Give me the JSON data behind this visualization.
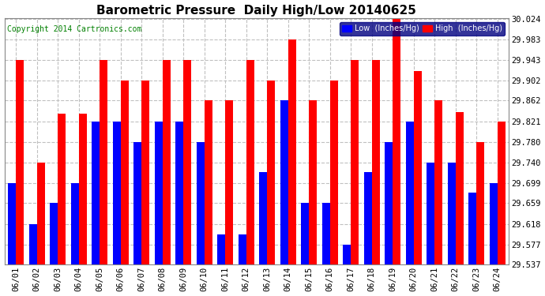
{
  "title": "Barometric Pressure  Daily High/Low 20140625",
  "copyright": "Copyright 2014 Cartronics.com",
  "legend_low": "Low  (Inches/Hg)",
  "legend_high": "High  (Inches/Hg)",
  "categories": [
    "06/01",
    "06/02",
    "06/03",
    "06/04",
    "06/05",
    "06/06",
    "06/07",
    "06/08",
    "06/09",
    "06/10",
    "06/11",
    "06/12",
    "06/13",
    "06/14",
    "06/15",
    "06/16",
    "06/17",
    "06/18",
    "06/19",
    "06/20",
    "06/21",
    "06/22",
    "06/23",
    "06/24"
  ],
  "high_values": [
    29.943,
    29.74,
    29.836,
    29.836,
    29.943,
    29.902,
    29.902,
    29.943,
    29.943,
    29.862,
    29.862,
    29.943,
    29.902,
    29.983,
    29.862,
    29.902,
    29.943,
    29.943,
    30.024,
    29.921,
    29.862,
    29.84,
    29.78,
    29.821
  ],
  "low_values": [
    29.699,
    29.618,
    29.659,
    29.699,
    29.821,
    29.821,
    29.78,
    29.821,
    29.821,
    29.78,
    29.597,
    29.597,
    29.72,
    29.862,
    29.66,
    29.659,
    29.577,
    29.72,
    29.78,
    29.821,
    29.74,
    29.74,
    29.68,
    29.699
  ],
  "ymin": 29.537,
  "ymax": 30.024,
  "yticks": [
    29.537,
    29.577,
    29.618,
    29.659,
    29.699,
    29.74,
    29.78,
    29.821,
    29.862,
    29.902,
    29.943,
    29.983,
    30.024
  ],
  "bg_color": "#ffffff",
  "low_color": "#0000ff",
  "high_color": "#ff0000",
  "grid_color": "#c0c0c0",
  "title_fontsize": 11,
  "copyright_fontsize": 7,
  "bar_width": 0.38
}
